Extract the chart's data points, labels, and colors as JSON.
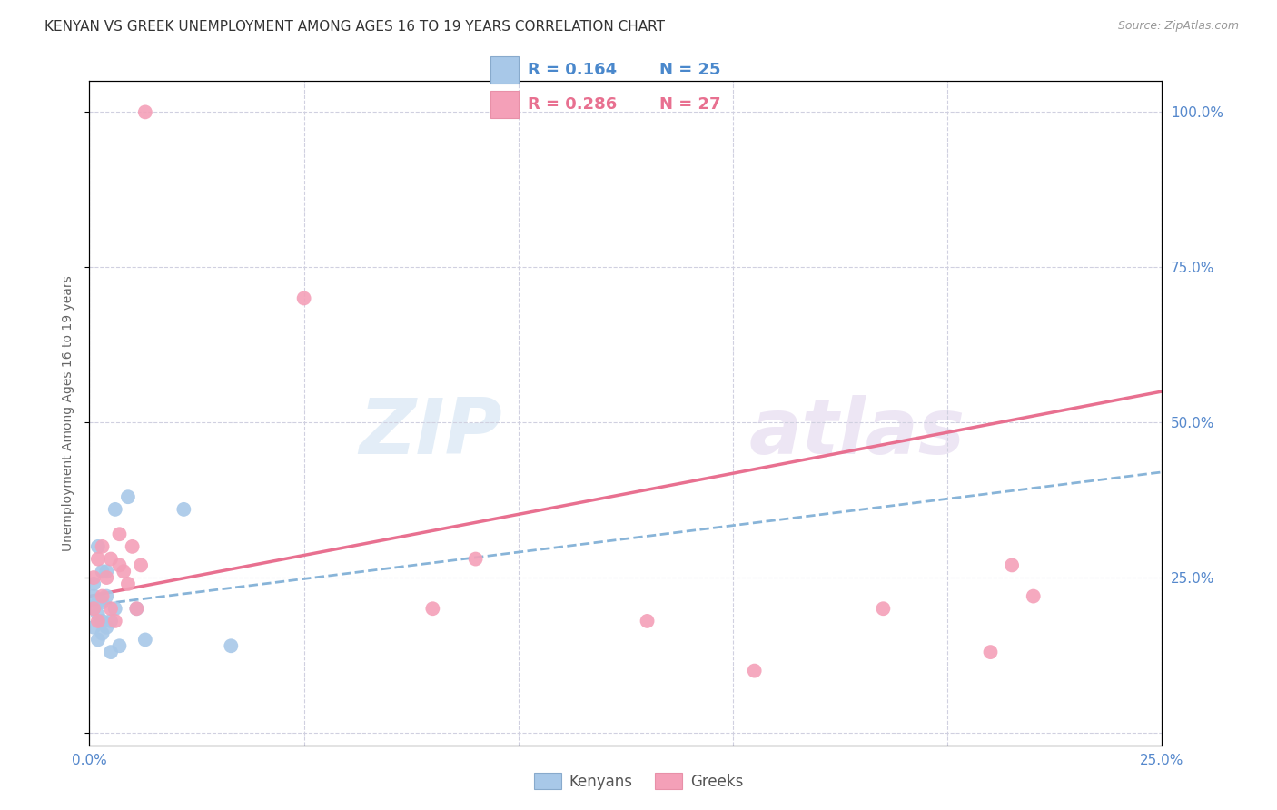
{
  "title": "KENYAN VS GREEK UNEMPLOYMENT AMONG AGES 16 TO 19 YEARS CORRELATION CHART",
  "source": "Source: ZipAtlas.com",
  "ylabel": "Unemployment Among Ages 16 to 19 years",
  "xlim": [
    0.0,
    0.25
  ],
  "ylim": [
    -0.02,
    1.05
  ],
  "yticks": [
    0.0,
    0.25,
    0.5,
    0.75,
    1.0
  ],
  "xticks": [
    0.0,
    0.05,
    0.1,
    0.15,
    0.2,
    0.25
  ],
  "xtick_labels": [
    "0.0%",
    "",
    "",
    "",
    "",
    "25.0%"
  ],
  "ytick_labels": [
    "",
    "25.0%",
    "50.0%",
    "75.0%",
    "100.0%"
  ],
  "title_fontsize": 11,
  "axis_label_fontsize": 10,
  "tick_fontsize": 11,
  "kenyan_color": "#a8c8e8",
  "greek_color": "#f4a0b8",
  "kenyan_line_color": "#88b4d8",
  "greek_line_color": "#e87090",
  "tick_color": "#5588cc",
  "background_color": "#ffffff",
  "grid_color": "#d0d0e0",
  "watermark_zip": "ZIP",
  "watermark_atlas": "atlas",
  "kenyan_x": [
    0.001,
    0.001,
    0.001,
    0.001,
    0.002,
    0.002,
    0.002,
    0.002,
    0.003,
    0.003,
    0.003,
    0.003,
    0.004,
    0.004,
    0.004,
    0.005,
    0.005,
    0.006,
    0.006,
    0.007,
    0.009,
    0.011,
    0.013,
    0.022,
    0.033
  ],
  "kenyan_y": [
    0.17,
    0.2,
    0.22,
    0.24,
    0.15,
    0.19,
    0.21,
    0.3,
    0.16,
    0.18,
    0.21,
    0.26,
    0.17,
    0.22,
    0.26,
    0.13,
    0.18,
    0.2,
    0.36,
    0.14,
    0.38,
    0.2,
    0.15,
    0.36,
    0.14
  ],
  "greek_x": [
    0.001,
    0.001,
    0.002,
    0.002,
    0.003,
    0.003,
    0.004,
    0.005,
    0.005,
    0.006,
    0.007,
    0.007,
    0.008,
    0.009,
    0.01,
    0.011,
    0.012,
    0.013,
    0.05,
    0.08,
    0.09,
    0.13,
    0.155,
    0.185,
    0.21,
    0.215,
    0.22
  ],
  "greek_y": [
    0.2,
    0.25,
    0.18,
    0.28,
    0.22,
    0.3,
    0.25,
    0.2,
    0.28,
    0.18,
    0.27,
    0.32,
    0.26,
    0.24,
    0.3,
    0.2,
    0.27,
    1.0,
    0.7,
    0.2,
    0.28,
    0.18,
    0.1,
    0.2,
    0.13,
    0.27,
    0.22
  ],
  "kenyan_trend_x": [
    0.0,
    0.25
  ],
  "kenyan_trend_y": [
    0.205,
    0.42
  ],
  "greek_trend_x": [
    0.0,
    0.25
  ],
  "greek_trend_y": [
    0.22,
    0.55
  ],
  "legend_R_kenyan": "R = 0.164",
  "legend_N_kenyan": "N = 25",
  "legend_R_greek": "R = 0.286",
  "legend_N_greek": "N = 27",
  "legend_kenyan_color": "#4a88cc",
  "legend_greek_color": "#e87090"
}
